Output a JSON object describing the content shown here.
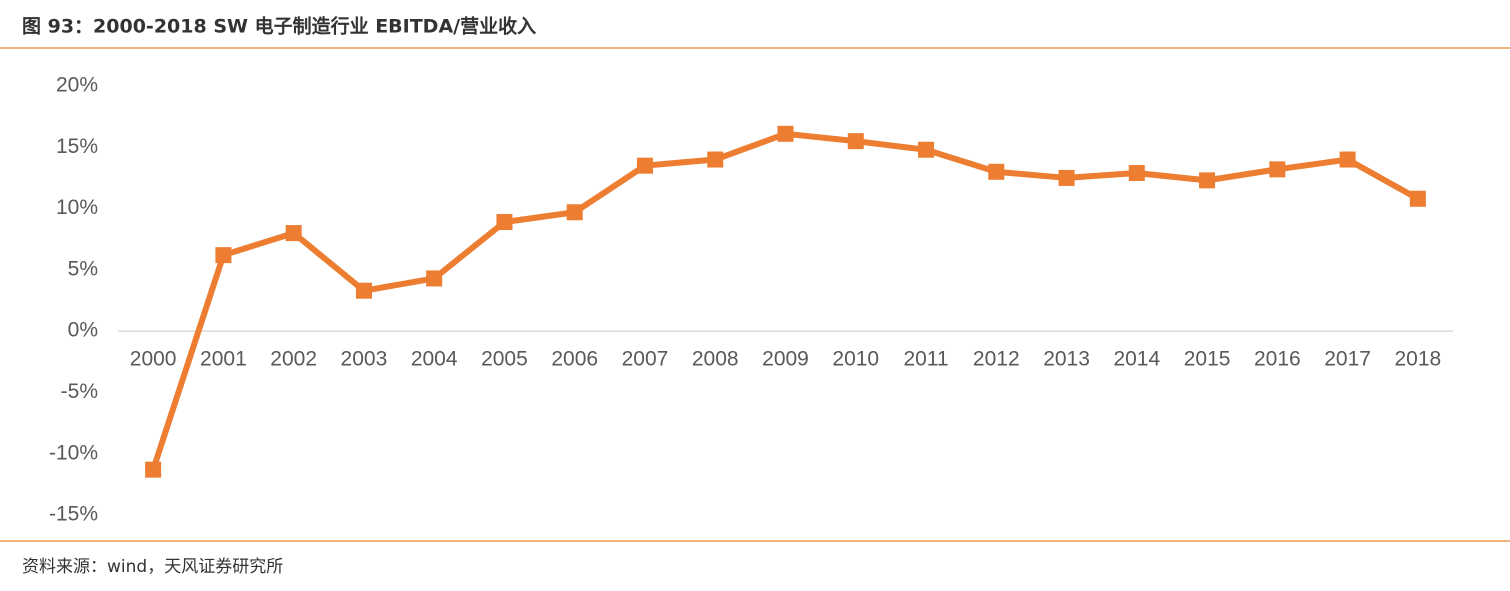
{
  "chart_data": {
    "type": "line",
    "title": "图 93：2000-2018 SW 电子制造行业 EBITDA/营业收入",
    "source": "资料来源：wind，天风证券研究所",
    "categories": [
      "2000",
      "2001",
      "2002",
      "2003",
      "2004",
      "2005",
      "2006",
      "2007",
      "2008",
      "2009",
      "2010",
      "2011",
      "2012",
      "2013",
      "2014",
      "2015",
      "2016",
      "2017",
      "2018"
    ],
    "series": [
      {
        "name": "EBITDA/营业收入",
        "color": "#ed7d31",
        "values": [
          -11.3,
          6.2,
          8.0,
          3.3,
          4.3,
          8.9,
          9.7,
          13.5,
          14.0,
          16.1,
          15.5,
          14.8,
          13.0,
          12.5,
          12.9,
          12.3,
          13.2,
          14.0,
          10.8
        ]
      }
    ],
    "ylim": [
      -15,
      20
    ],
    "yticks": [
      {
        "value": -15,
        "label": "-15%"
      },
      {
        "value": -10,
        "label": "-10%"
      },
      {
        "value": -5,
        "label": "-5%"
      },
      {
        "value": 0,
        "label": "0%"
      },
      {
        "value": 5,
        "label": "5%"
      },
      {
        "value": 10,
        "label": "10%"
      },
      {
        "value": 15,
        "label": "15%"
      },
      {
        "value": 20,
        "label": "20%"
      }
    ],
    "grid": false,
    "legend": false
  }
}
